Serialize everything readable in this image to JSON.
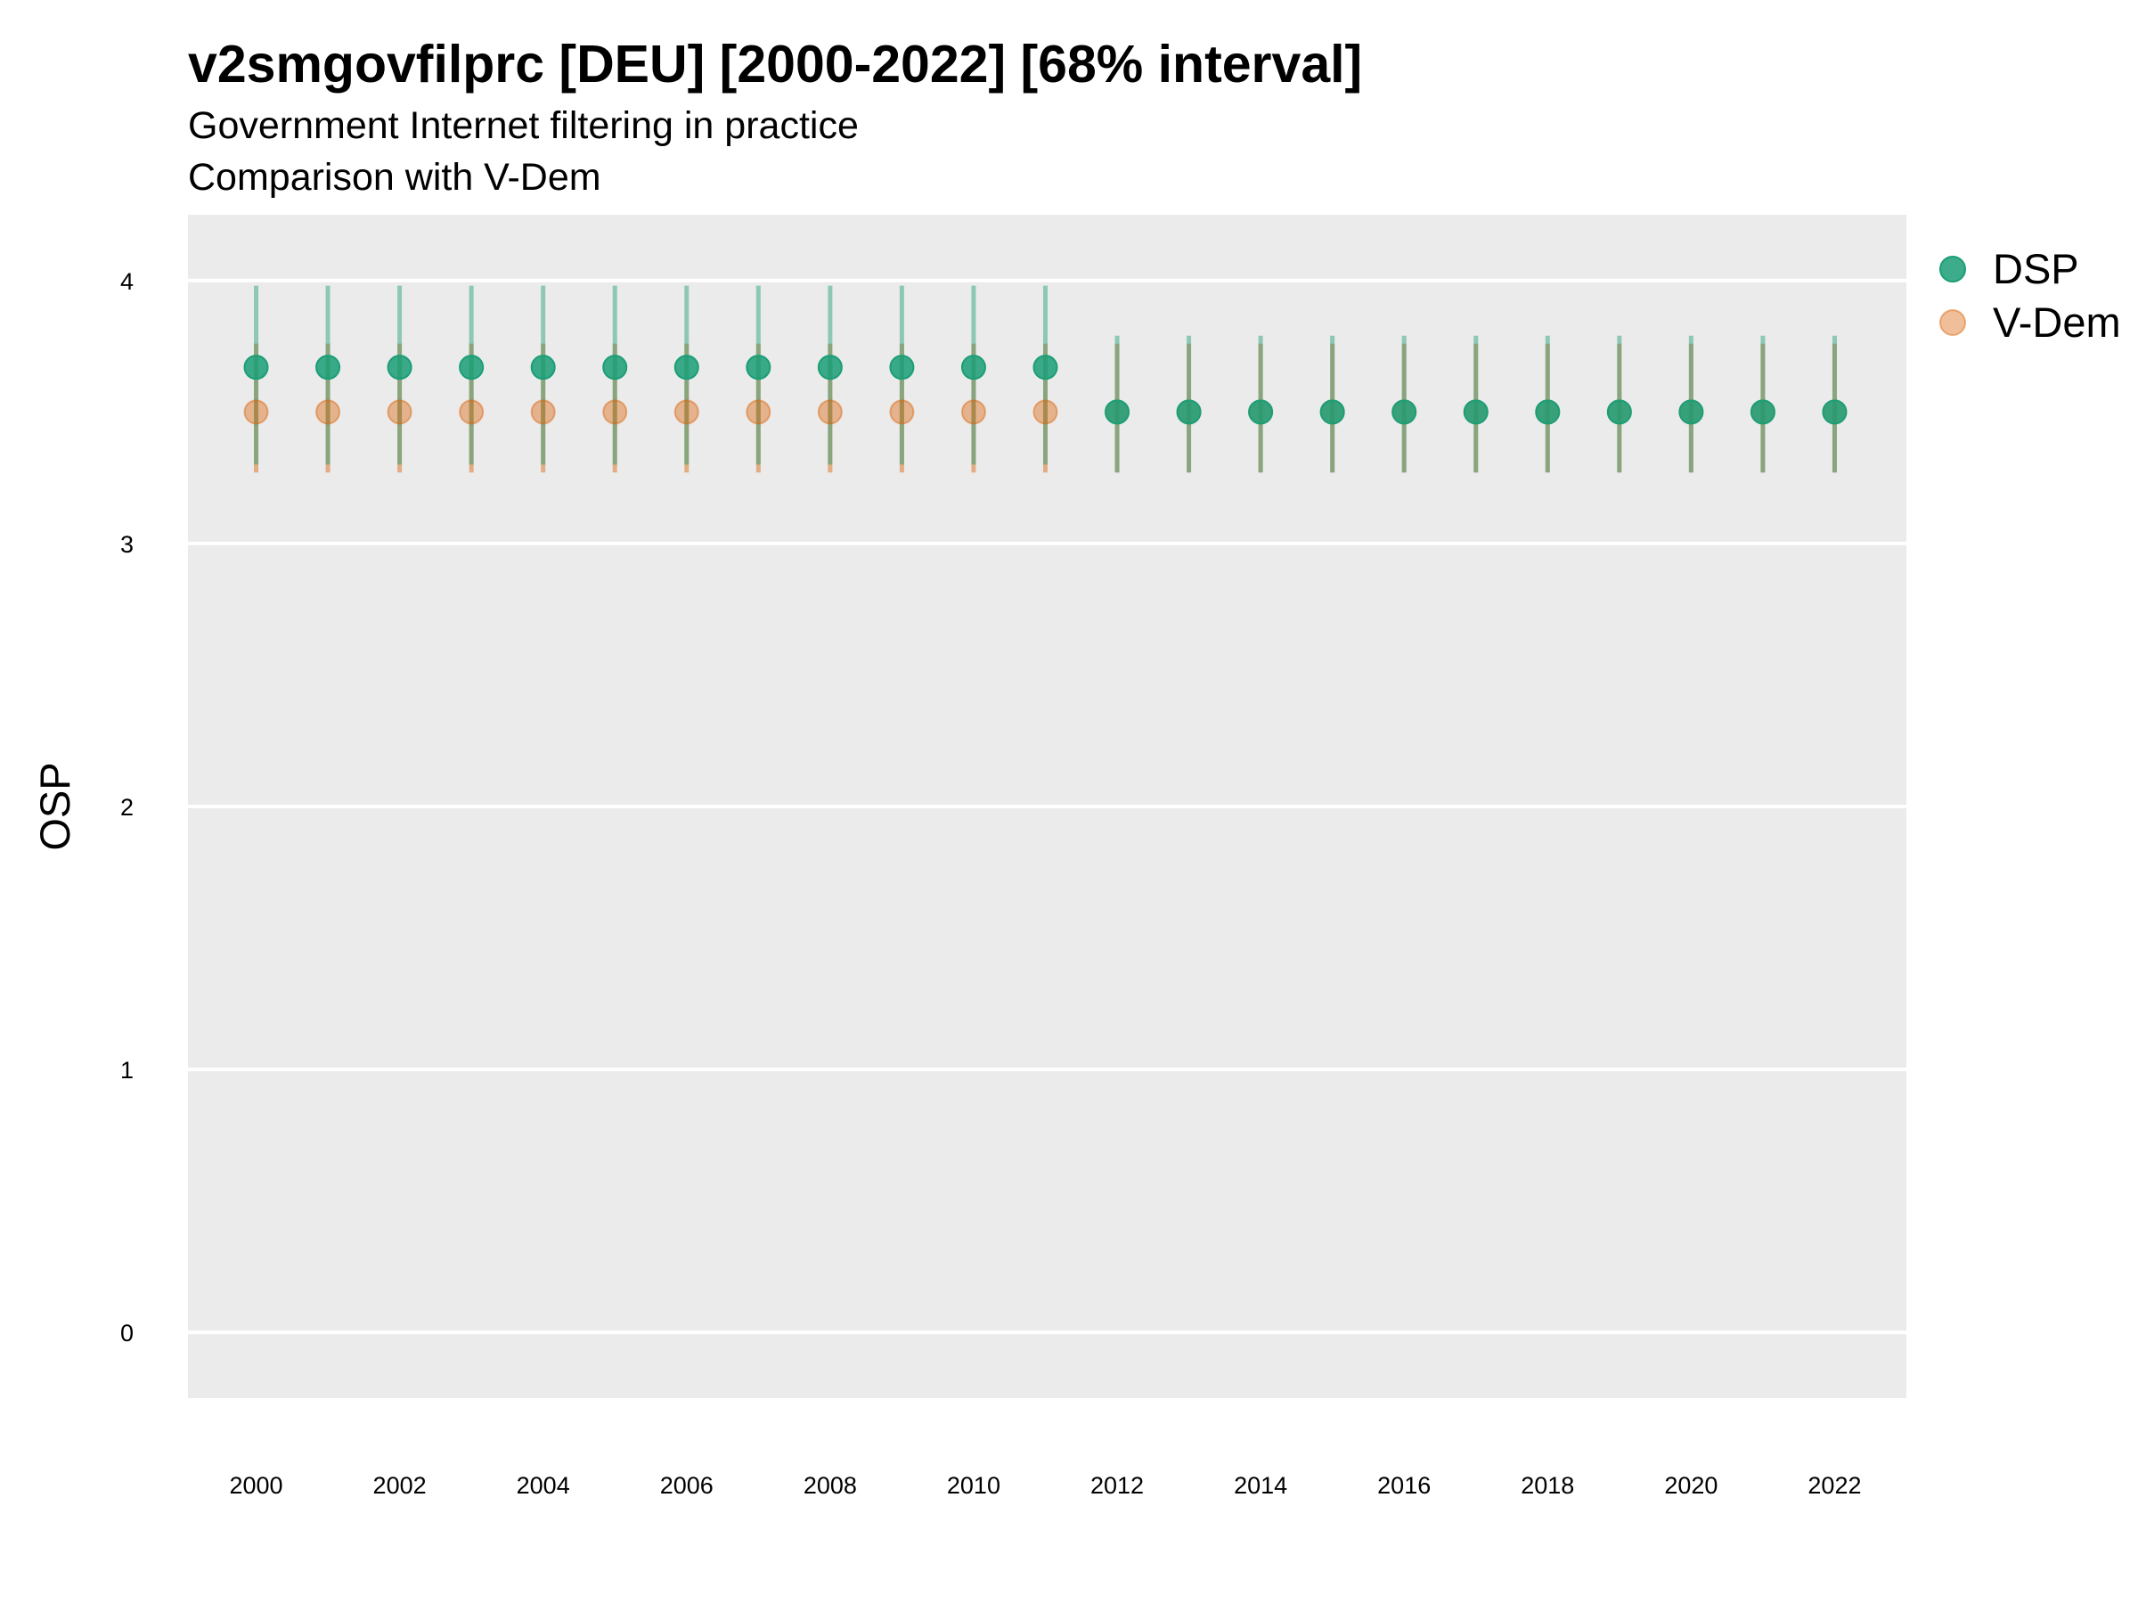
{
  "chart_data": {
    "type": "scatter",
    "title": "v2smgovfilprc [DEU] [2000-2022] [68% interval]",
    "subtitle_lines": [
      "Government Internet filtering in practice",
      "Comparison with V-Dem"
    ],
    "xlabel": "",
    "ylabel": "OSP",
    "ylim": [
      -0.25,
      4.25
    ],
    "yticks": [
      0,
      1,
      2,
      3,
      4
    ],
    "xlim": [
      1999.05,
      2023.0
    ],
    "xticks": [
      2000,
      2002,
      2004,
      2006,
      2008,
      2010,
      2012,
      2014,
      2016,
      2018,
      2020,
      2022
    ],
    "grid": true,
    "legend_position": "right",
    "series": [
      {
        "name": "DSP",
        "color": "#1b9e77",
        "x": [
          2000,
          2001,
          2002,
          2003,
          2004,
          2005,
          2006,
          2007,
          2008,
          2009,
          2010,
          2011,
          2012,
          2013,
          2014,
          2015,
          2016,
          2017,
          2018,
          2019,
          2020,
          2021,
          2022
        ],
        "y": [
          3.67,
          3.67,
          3.67,
          3.67,
          3.67,
          3.67,
          3.67,
          3.67,
          3.67,
          3.67,
          3.67,
          3.67,
          3.5,
          3.5,
          3.5,
          3.5,
          3.5,
          3.5,
          3.5,
          3.5,
          3.5,
          3.5,
          3.5
        ],
        "lower": [
          3.3,
          3.3,
          3.3,
          3.3,
          3.3,
          3.3,
          3.3,
          3.3,
          3.3,
          3.3,
          3.3,
          3.3,
          3.27,
          3.27,
          3.27,
          3.27,
          3.27,
          3.27,
          3.27,
          3.27,
          3.27,
          3.27,
          3.27
        ],
        "upper": [
          3.98,
          3.98,
          3.98,
          3.98,
          3.98,
          3.98,
          3.98,
          3.98,
          3.98,
          3.98,
          3.98,
          3.98,
          3.79,
          3.79,
          3.79,
          3.79,
          3.79,
          3.79,
          3.79,
          3.79,
          3.79,
          3.79,
          3.79
        ]
      },
      {
        "name": "V-Dem",
        "color": "#d95f02",
        "x": [
          2000,
          2001,
          2002,
          2003,
          2004,
          2005,
          2006,
          2007,
          2008,
          2009,
          2010,
          2011,
          2012,
          2013,
          2014,
          2015,
          2016,
          2017,
          2018,
          2019,
          2020,
          2021,
          2022
        ],
        "y": [
          3.5,
          3.5,
          3.5,
          3.5,
          3.5,
          3.5,
          3.5,
          3.5,
          3.5,
          3.5,
          3.5,
          3.5,
          3.5,
          3.5,
          3.5,
          3.5,
          3.5,
          3.5,
          3.5,
          3.5,
          3.5,
          3.5,
          3.5
        ],
        "lower": [
          3.27,
          3.27,
          3.27,
          3.27,
          3.27,
          3.27,
          3.27,
          3.27,
          3.27,
          3.27,
          3.27,
          3.27,
          3.27,
          3.27,
          3.27,
          3.27,
          3.27,
          3.27,
          3.27,
          3.27,
          3.27,
          3.27,
          3.27
        ],
        "upper": [
          3.76,
          3.76,
          3.76,
          3.76,
          3.76,
          3.76,
          3.76,
          3.76,
          3.76,
          3.76,
          3.76,
          3.76,
          3.76,
          3.76,
          3.76,
          3.76,
          3.76,
          3.76,
          3.76,
          3.76,
          3.76,
          3.76,
          3.76
        ]
      }
    ]
  }
}
